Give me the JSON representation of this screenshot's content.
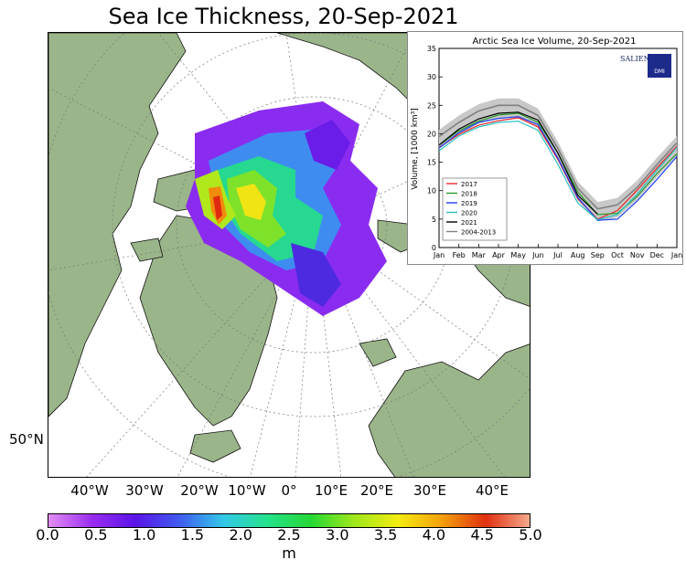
{
  "title": "Sea Ice Thickness, 20-Sep-2021",
  "map": {
    "lat_label": "50°N",
    "lon_labels": [
      "40°W",
      "30°W",
      "20°W",
      "10°W",
      "0°",
      "10°E",
      "20°E",
      "30°E",
      "40°E"
    ],
    "land_color": "#9bb58a",
    "ocean_color": "#ffffff"
  },
  "colorbar": {
    "unit": "m",
    "ticks": [
      "0.0",
      "0.5",
      "1.0",
      "1.5",
      "2.0",
      "2.5",
      "3.0",
      "3.5",
      "4.0",
      "4.5",
      "5.0"
    ],
    "colors": [
      "#e48ef5",
      "#9a2cf0",
      "#5a14e8",
      "#3f5cf0",
      "#33c8e8",
      "#24e28c",
      "#26d836",
      "#a0e81a",
      "#f4ec10",
      "#f4a00c",
      "#e03010",
      "#f5a98c"
    ]
  },
  "chart_data": {
    "type": "line",
    "title": "Arctic Sea Ice Volume, 20-Sep-2021",
    "ylabel": "Volume, [1000 km³]",
    "xlabel": "",
    "ylim": [
      0,
      35
    ],
    "yticks": [
      "0",
      "5",
      "10",
      "15",
      "20",
      "25",
      "30",
      "35"
    ],
    "categories": [
      "Jan",
      "Feb",
      "Mar",
      "Apr",
      "May",
      "Jun",
      "Jul",
      "Aug",
      "Sep",
      "Oct",
      "Nov",
      "Dec",
      "Jan"
    ],
    "legend_position": "bottom-left",
    "logo_text": "SALIENSEAS",
    "badge_text": "DMI",
    "series": [
      {
        "name": "2017",
        "color": "#e8262b",
        "values": [
          17.6,
          19.9,
          21.5,
          22.3,
          22.8,
          21.2,
          15.5,
          8.6,
          5.0,
          6.5,
          10.1,
          14.0,
          17.8
        ]
      },
      {
        "name": "2018",
        "color": "#2a9a2a",
        "values": [
          18.0,
          20.5,
          22.2,
          23.3,
          23.6,
          22.0,
          16.6,
          9.8,
          5.8,
          6.0,
          9.0,
          13.0,
          16.5
        ]
      },
      {
        "name": "2019",
        "color": "#1f3df0",
        "values": [
          17.5,
          20.2,
          22.0,
          22.7,
          23.0,
          21.6,
          15.7,
          8.8,
          4.8,
          5.0,
          8.2,
          12.0,
          16.0
        ]
      },
      {
        "name": "2020",
        "color": "#28c0c0",
        "values": [
          17.0,
          19.6,
          21.2,
          22.0,
          22.2,
          20.6,
          14.6,
          7.8,
          4.9,
          5.8,
          9.4,
          13.6,
          17.6
        ]
      },
      {
        "name": "2021",
        "color": "#000000",
        "values": [
          18.0,
          20.8,
          22.6,
          23.6,
          23.8,
          22.4,
          16.6,
          9.2,
          5.9,
          null,
          null,
          null,
          null
        ]
      },
      {
        "name": "2004-2013",
        "color": "#808080",
        "values": [
          19.5,
          22.0,
          24.0,
          25.0,
          25.0,
          23.2,
          17.4,
          10.4,
          6.8,
          7.5,
          10.6,
          14.6,
          18.4
        ]
      }
    ]
  }
}
